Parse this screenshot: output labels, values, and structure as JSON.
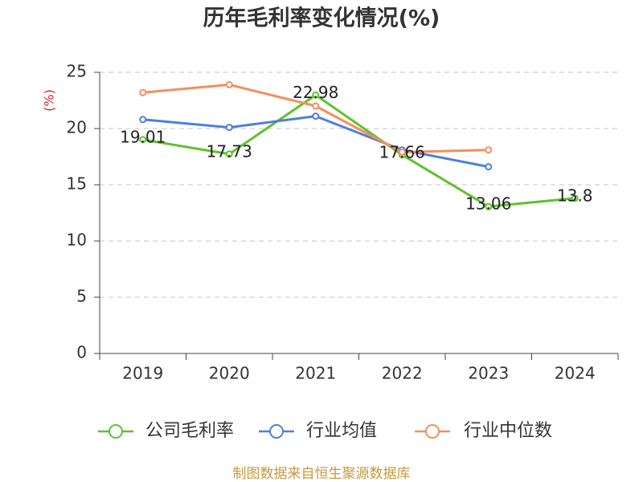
{
  "source_note": "制图数据来自恒生聚源数据库",
  "colors": {
    "ylabel": "#d9222a",
    "source_note": "#c8983e",
    "text": "#333333",
    "gridline": "#c4c4c4",
    "axis": "#444444"
  },
  "chart_data": {
    "type": "line",
    "title": "历年毛利率变化情况(%)",
    "xlabel": "",
    "ylabel": "(%)",
    "categories": [
      "2019",
      "2020",
      "2021",
      "2022",
      "2023",
      "2024"
    ],
    "ylim": [
      0,
      25
    ],
    "yticks": [
      0,
      5,
      10,
      15,
      20,
      25
    ],
    "grid": true,
    "legend_position": "bottom",
    "series": [
      {
        "name": "公司毛利率",
        "color": "#5ec22d",
        "values": [
          19.01,
          17.73,
          22.98,
          17.66,
          13.06,
          13.8
        ],
        "data_labels": true
      },
      {
        "name": "行业均值",
        "color": "#4f7fdb",
        "values": [
          20.8,
          20.1,
          21.1,
          18.1,
          16.6,
          null
        ],
        "data_labels": false
      },
      {
        "name": "行业中位数",
        "color": "#f48f5c",
        "values": [
          23.2,
          23.9,
          22.0,
          17.9,
          18.1,
          null
        ],
        "data_labels": false
      }
    ]
  }
}
